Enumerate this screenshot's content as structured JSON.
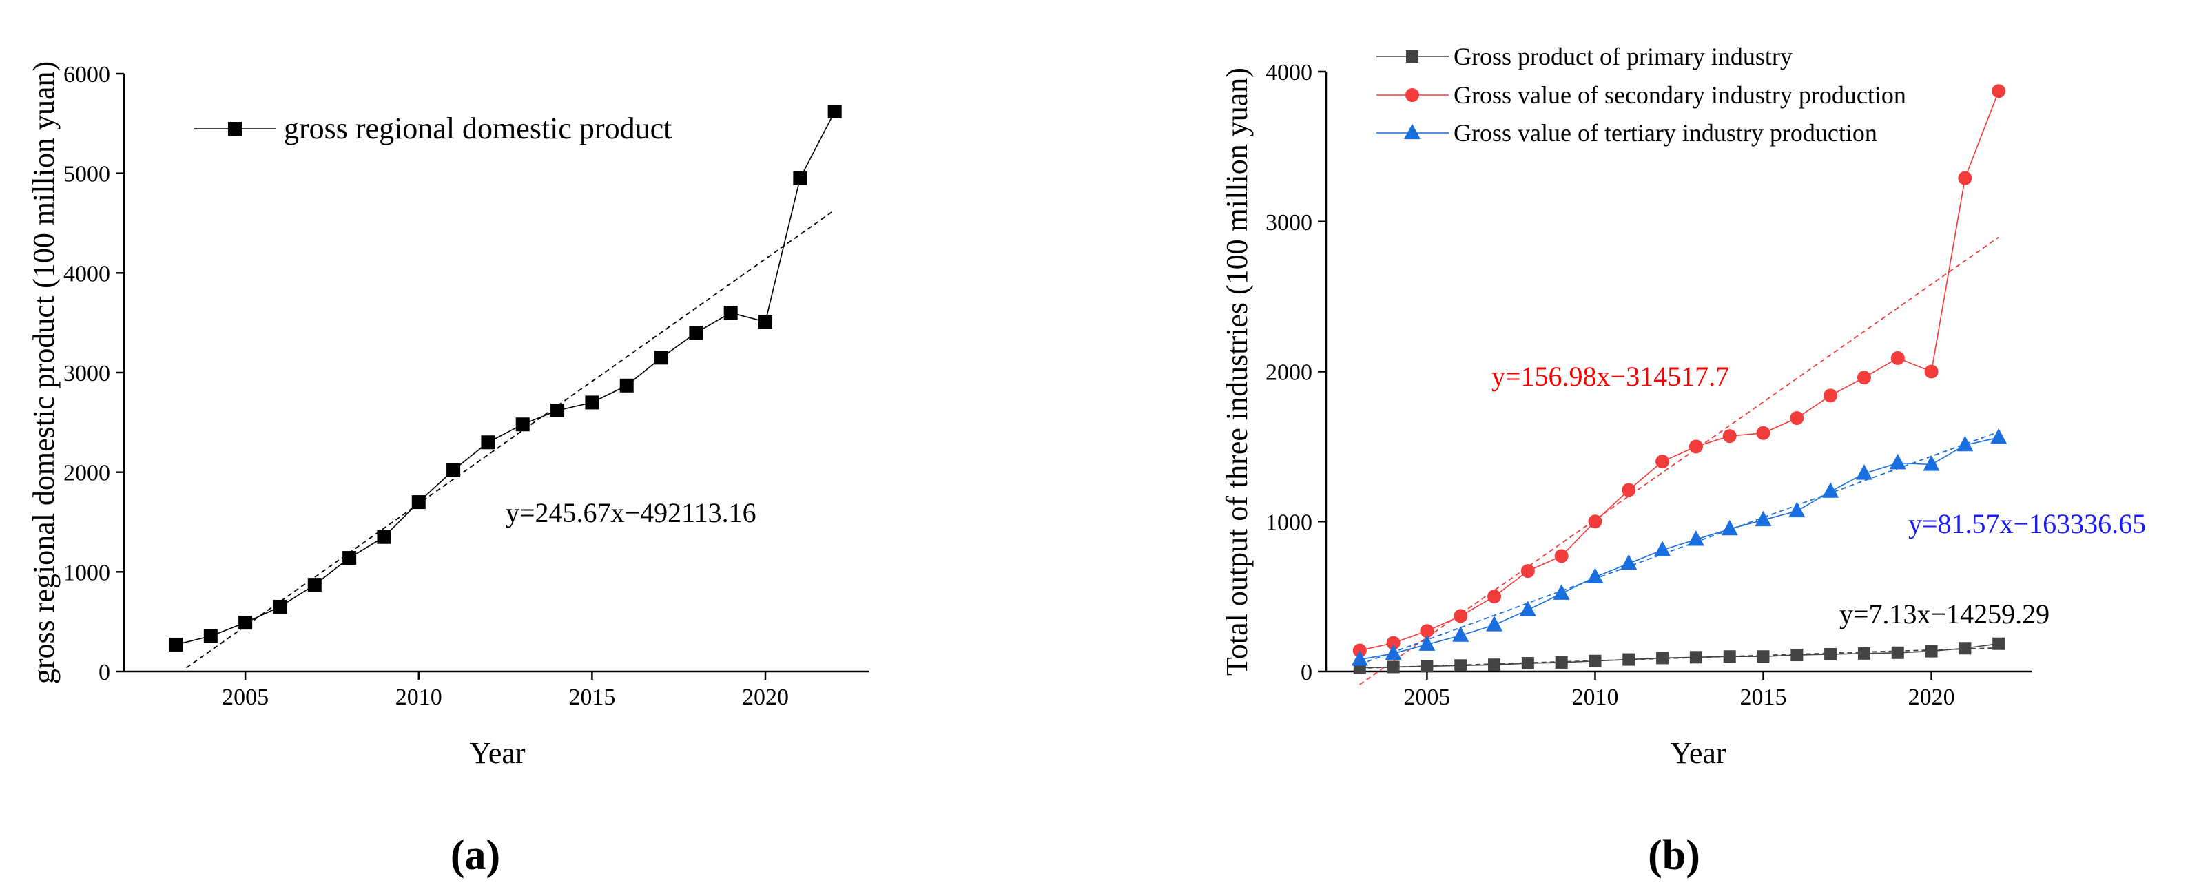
{
  "figure": {
    "panel_a_label": "(a)",
    "panel_b_label": "(b)"
  },
  "colors": {
    "gdp": "#000000",
    "primary": "#444444",
    "secondary": "#f23c3c",
    "tertiary": "#1a6fe0",
    "eq_primary": "#000000",
    "eq_secondary": "#ff0000",
    "eq_tertiary": "#1a1aff"
  },
  "chart_data": [
    {
      "type": "line",
      "panel": "a",
      "title": "",
      "xlabel": "Year",
      "ylabel": "gross regional domestic product (100 million yuan)",
      "xlim": [
        2001.5,
        2023
      ],
      "ylim": [
        0,
        6000
      ],
      "xticks": [
        2005,
        2010,
        2015,
        2020
      ],
      "yticks": [
        0,
        1000,
        2000,
        3000,
        4000,
        5000,
        6000
      ],
      "x": [
        2003,
        2004,
        2005,
        2006,
        2007,
        2008,
        2009,
        2010,
        2011,
        2012,
        2013,
        2014,
        2015,
        2016,
        2017,
        2018,
        2019,
        2020,
        2021,
        2022
      ],
      "series": [
        {
          "name": "gross regional domestic product",
          "marker": "square",
          "color": "#000000",
          "values": [
            270,
            355,
            490,
            650,
            870,
            1140,
            1350,
            1700,
            2020,
            2300,
            2480,
            2620,
            2700,
            2870,
            3150,
            3400,
            3600,
            3510,
            4950,
            5620
          ]
        }
      ],
      "trendline": {
        "equation": "y=245.67x−492113.16",
        "slope": 245.67,
        "intercept": -492113.16,
        "x_range": [
          2003.3,
          2022
        ]
      },
      "legend_position": "top-left"
    },
    {
      "type": "line",
      "panel": "b",
      "title": "",
      "xlabel": "Year",
      "ylabel": "Total output of three industries (100 million yuan)",
      "xlim": [
        2002,
        2023
      ],
      "ylim": [
        0,
        4000
      ],
      "xticks": [
        2005,
        2010,
        2015,
        2020
      ],
      "yticks": [
        0,
        1000,
        2000,
        3000,
        4000
      ],
      "x": [
        2003,
        2004,
        2005,
        2006,
        2007,
        2008,
        2009,
        2010,
        2011,
        2012,
        2013,
        2014,
        2015,
        2016,
        2017,
        2018,
        2019,
        2020,
        2021,
        2022
      ],
      "series": [
        {
          "name": "Gross product of primary industry",
          "marker": "square",
          "color": "#444444",
          "values": [
            25,
            30,
            35,
            40,
            45,
            55,
            60,
            70,
            80,
            90,
            95,
            100,
            100,
            110,
            115,
            120,
            125,
            135,
            155,
            185
          ]
        },
        {
          "name": "Gross value of secondary industry production",
          "marker": "circle",
          "color": "#f23c3c",
          "values": [
            140,
            190,
            270,
            370,
            500,
            670,
            770,
            1000,
            1210,
            1400,
            1500,
            1570,
            1590,
            1690,
            1840,
            1960,
            2090,
            2000,
            3290,
            3870
          ]
        },
        {
          "name": "Gross value of tertiary industry production",
          "marker": "triangle",
          "color": "#1a6fe0",
          "values": [
            80,
            120,
            180,
            240,
            310,
            410,
            520,
            630,
            720,
            810,
            880,
            950,
            1010,
            1070,
            1200,
            1320,
            1390,
            1380,
            1510,
            1560
          ]
        }
      ],
      "trendlines": [
        {
          "series": "Gross product of primary industry",
          "equation": "y=7.13x−14259.29",
          "slope": 7.13,
          "intercept": -14259.29
        },
        {
          "series": "Gross value of secondary industry production",
          "equation": "y=156.98x−314517.7",
          "slope": 156.98,
          "intercept": -314517.7
        },
        {
          "series": "Gross value of tertiary industry production",
          "equation": "y=81.57x−163336.65",
          "slope": 81.57,
          "intercept": -163336.65
        }
      ],
      "legend_position": "top-left"
    }
  ]
}
